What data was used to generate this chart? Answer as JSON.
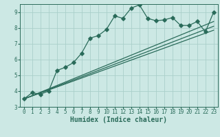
{
  "xlabel": "Humidex (Indice chaleur)",
  "xlim": [
    -0.5,
    23.5
  ],
  "ylim": [
    3,
    9.5
  ],
  "bg_color": "#cce8e4",
  "line_color": "#2a6b5a",
  "grid_color": "#aacfca",
  "curve_x": [
    0,
    1,
    2,
    3,
    4,
    5,
    6,
    7,
    8,
    9,
    10,
    11,
    12,
    13,
    14,
    15,
    16,
    17,
    18,
    19,
    20,
    21,
    22,
    23
  ],
  "curve_y": [
    3.5,
    3.9,
    3.8,
    4.0,
    5.3,
    5.5,
    5.8,
    6.4,
    7.35,
    7.5,
    7.9,
    8.75,
    8.6,
    9.25,
    9.45,
    8.6,
    8.45,
    8.5,
    8.65,
    8.15,
    8.15,
    8.4,
    7.75,
    9.0
  ],
  "line1_y_end": 8.4,
  "line2_y_end": 8.1,
  "line3_y_end": 7.85,
  "line_y_start": 3.5,
  "xticks": [
    0,
    1,
    2,
    3,
    4,
    5,
    6,
    7,
    8,
    9,
    10,
    11,
    12,
    13,
    14,
    15,
    16,
    17,
    18,
    19,
    20,
    21,
    22,
    23
  ],
  "yticks": [
    3,
    4,
    5,
    6,
    7,
    8,
    9
  ],
  "marker_size": 2.8,
  "line_width": 0.9,
  "xlabel_fontsize": 7.0,
  "tick_fontsize": 5.5
}
